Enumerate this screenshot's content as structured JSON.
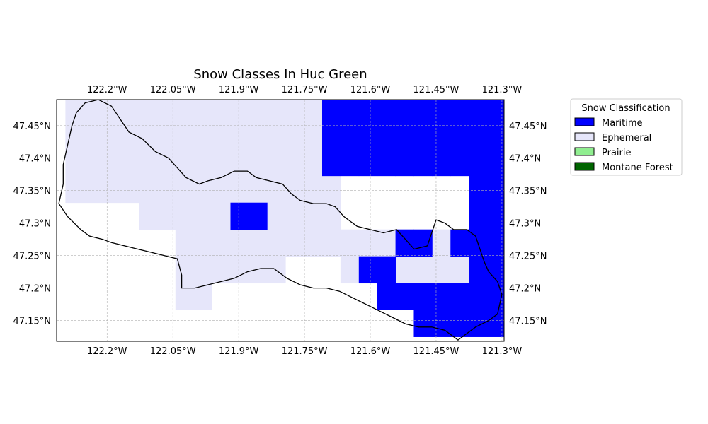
{
  "title": "Snow Classes In Huc Green",
  "colors": {
    "Maritime": "#0000ff",
    "Ephemeral": "#e6e6fa",
    "Prairie": "#90ee90",
    "Montane Forest": "#006400"
  },
  "legend": {
    "title": "Snow Classification",
    "items": [
      {
        "label": "Maritime",
        "color": "#0000ff"
      },
      {
        "label": "Ephemeral",
        "color": "#e6e6fa"
      },
      {
        "label": "Prairie",
        "color": "#90ee90"
      },
      {
        "label": "Montane Forest",
        "color": "#006400"
      }
    ]
  },
  "axes": {
    "lon_range": [
      -122.315,
      -121.295
    ],
    "lat_range": [
      47.118,
      47.49
    ],
    "lon_ticks": [
      {
        "value": -122.2,
        "label": "122.2°W"
      },
      {
        "value": -122.05,
        "label": "122.05°W"
      },
      {
        "value": -121.9,
        "label": "121.9°W"
      },
      {
        "value": -121.75,
        "label": "121.75°W"
      },
      {
        "value": -121.6,
        "label": "121.6°W"
      },
      {
        "value": -121.45,
        "label": "121.45°W"
      },
      {
        "value": -121.3,
        "label": "121.3°W"
      }
    ],
    "lat_ticks": [
      {
        "value": 47.45,
        "label": "47.45°N"
      },
      {
        "value": 47.4,
        "label": "47.4°N"
      },
      {
        "value": 47.35,
        "label": "47.35°N"
      },
      {
        "value": 47.3,
        "label": "47.3°N"
      },
      {
        "value": 47.25,
        "label": "47.25°N"
      },
      {
        "value": 47.2,
        "label": "47.2°N"
      },
      {
        "value": 47.15,
        "label": "47.15°N"
      }
    ],
    "grid": true
  },
  "chart_data": {
    "type": "heatmap",
    "grid_origin": {
      "lon": -122.295,
      "lat": 47.125
    },
    "cell_size": {
      "lon": 0.0418,
      "lat": 0.0413
    },
    "cells_Ephemeral": [
      [
        8,
        0
      ],
      [
        8,
        1
      ],
      [
        8,
        2
      ],
      [
        8,
        3
      ],
      [
        8,
        4
      ],
      [
        8,
        5
      ],
      [
        8,
        6
      ],
      [
        8,
        7
      ],
      [
        8,
        8
      ],
      [
        8,
        9
      ],
      [
        8,
        10
      ],
      [
        8,
        11
      ],
      [
        8,
        12
      ],
      [
        8,
        13
      ],
      [
        8,
        14
      ],
      [
        7,
        0
      ],
      [
        7,
        1
      ],
      [
        7,
        2
      ],
      [
        7,
        3
      ],
      [
        7,
        4
      ],
      [
        7,
        5
      ],
      [
        7,
        6
      ],
      [
        7,
        7
      ],
      [
        7,
        8
      ],
      [
        7,
        9
      ],
      [
        7,
        10
      ],
      [
        7,
        11
      ],
      [
        7,
        12
      ],
      [
        7,
        13
      ],
      [
        7,
        14
      ],
      [
        6,
        0
      ],
      [
        6,
        1
      ],
      [
        6,
        2
      ],
      [
        6,
        3
      ],
      [
        6,
        4
      ],
      [
        6,
        5
      ],
      [
        6,
        6
      ],
      [
        6,
        7
      ],
      [
        6,
        8
      ],
      [
        6,
        9
      ],
      [
        6,
        10
      ],
      [
        6,
        11
      ],
      [
        6,
        12
      ],
      [
        6,
        13
      ],
      [
        6,
        14
      ],
      [
        5,
        0
      ],
      [
        5,
        1
      ],
      [
        5,
        2
      ],
      [
        5,
        3
      ],
      [
        5,
        4
      ],
      [
        5,
        5
      ],
      [
        5,
        6
      ],
      [
        5,
        7
      ],
      [
        5,
        8
      ],
      [
        5,
        9
      ],
      [
        5,
        10
      ],
      [
        5,
        11
      ],
      [
        5,
        12
      ],
      [
        5,
        13
      ],
      [
        5,
        14
      ],
      [
        4,
        4
      ],
      [
        4,
        5
      ],
      [
        4,
        6
      ],
      [
        4,
        7
      ],
      [
        4,
        8
      ],
      [
        4,
        9
      ],
      [
        4,
        10
      ],
      [
        4,
        11
      ],
      [
        4,
        12
      ],
      [
        4,
        13
      ],
      [
        4,
        14
      ],
      [
        3,
        6
      ],
      [
        3,
        7
      ],
      [
        3,
        8
      ],
      [
        3,
        9
      ],
      [
        3,
        10
      ],
      [
        3,
        11
      ],
      [
        3,
        12
      ],
      [
        3,
        13
      ],
      [
        3,
        14
      ],
      [
        3,
        15
      ],
      [
        3,
        16
      ],
      [
        3,
        17
      ],
      [
        3,
        20
      ],
      [
        3,
        21
      ],
      [
        3,
        22
      ],
      [
        3,
        23
      ],
      [
        3,
        24
      ],
      [
        3,
        25
      ],
      [
        2,
        6
      ],
      [
        2,
        7
      ],
      [
        2,
        8
      ],
      [
        2,
        9
      ],
      [
        2,
        10
      ],
      [
        2,
        11
      ],
      [
        2,
        15
      ],
      [
        2,
        16
      ],
      [
        2,
        17
      ],
      [
        2,
        18
      ],
      [
        2,
        19
      ],
      [
        2,
        20
      ],
      [
        2,
        21
      ],
      [
        2,
        22
      ],
      [
        2,
        23
      ],
      [
        2,
        24
      ],
      [
        2,
        25
      ],
      [
        2,
        26
      ],
      [
        2,
        27
      ],
      [
        1,
        6
      ],
      [
        1,
        7
      ],
      [
        1,
        20
      ],
      [
        1,
        21
      ],
      [
        1,
        22
      ],
      [
        1,
        26
      ],
      [
        1,
        27
      ],
      [
        1,
        28
      ],
      [
        0,
        26
      ],
      [
        0,
        27
      ],
      [
        0,
        28
      ],
      [
        9,
        0
      ],
      [
        9,
        1
      ],
      [
        9,
        2
      ],
      [
        9,
        3
      ],
      [
        9,
        4
      ],
      [
        9,
        5
      ],
      [
        10,
        0
      ],
      [
        10,
        1
      ],
      [
        10,
        2
      ],
      [
        10,
        3
      ],
      [
        10,
        4
      ],
      [
        10,
        5
      ],
      [
        11,
        0
      ],
      [
        11,
        1
      ],
      [
        11,
        2
      ]
    ],
    "cells_Maritime": [
      [
        9,
        14
      ],
      [
        9,
        15
      ],
      [
        9,
        16
      ],
      [
        8,
        14
      ],
      [
        8,
        15
      ],
      [
        8,
        16
      ],
      [
        8,
        17
      ],
      [
        8,
        18
      ],
      [
        8,
        19
      ],
      [
        8,
        20
      ],
      [
        8,
        21
      ],
      [
        8,
        22
      ],
      [
        8,
        23
      ],
      [
        8,
        24
      ],
      [
        8,
        25
      ],
      [
        8,
        26
      ],
      [
        7,
        14
      ],
      [
        7,
        15
      ],
      [
        7,
        16
      ],
      [
        7,
        17
      ],
      [
        7,
        18
      ],
      [
        7,
        19
      ],
      [
        7,
        20
      ],
      [
        7,
        21
      ],
      [
        7,
        22
      ],
      [
        7,
        23
      ],
      [
        7,
        24
      ],
      [
        7,
        25
      ],
      [
        7,
        26
      ],
      [
        6,
        14
      ],
      [
        6,
        15
      ],
      [
        6,
        16
      ],
      [
        6,
        17
      ],
      [
        6,
        18
      ],
      [
        6,
        19
      ],
      [
        6,
        20
      ],
      [
        6,
        21
      ],
      [
        6,
        22
      ],
      [
        6,
        23
      ],
      [
        6,
        24
      ],
      [
        6,
        25
      ],
      [
        6,
        26
      ],
      [
        5,
        22
      ],
      [
        5,
        23
      ],
      [
        5,
        24
      ],
      [
        5,
        25
      ],
      [
        5,
        26
      ],
      [
        4,
        9
      ],
      [
        4,
        10
      ],
      [
        4,
        22
      ],
      [
        4,
        23
      ],
      [
        4,
        24
      ],
      [
        4,
        25
      ],
      [
        4,
        26
      ],
      [
        3,
        18
      ],
      [
        3,
        19
      ],
      [
        3,
        21
      ],
      [
        3,
        22
      ],
      [
        3,
        23
      ],
      [
        3,
        24
      ],
      [
        3,
        25
      ],
      [
        2,
        16
      ],
      [
        2,
        17
      ],
      [
        2,
        22
      ],
      [
        2,
        23
      ],
      [
        2,
        24
      ],
      [
        2,
        25
      ],
      [
        2,
        26
      ],
      [
        2,
        27
      ],
      [
        2,
        28
      ],
      [
        1,
        17
      ],
      [
        1,
        18
      ],
      [
        1,
        19
      ],
      [
        1,
        20
      ],
      [
        1,
        21
      ],
      [
        1,
        22
      ],
      [
        1,
        23
      ],
      [
        1,
        24
      ],
      [
        1,
        25
      ],
      [
        1,
        26
      ],
      [
        1,
        27
      ],
      [
        1,
        28
      ],
      [
        0,
        19
      ],
      [
        0,
        20
      ],
      [
        0,
        21
      ],
      [
        0,
        22
      ],
      [
        0,
        23
      ],
      [
        0,
        24
      ],
      [
        0,
        25
      ],
      [
        0,
        26
      ],
      [
        0,
        27
      ],
      [
        0,
        28
      ]
    ],
    "watershed_outline_lonlat": [
      [
        -122.31,
        47.33
      ],
      [
        -122.29,
        47.31
      ],
      [
        -122.26,
        47.29
      ],
      [
        -122.24,
        47.28
      ],
      [
        -122.21,
        47.275
      ],
      [
        -122.19,
        47.27
      ],
      [
        -122.16,
        47.265
      ],
      [
        -122.13,
        47.26
      ],
      [
        -122.1,
        47.255
      ],
      [
        -122.07,
        47.25
      ],
      [
        -122.04,
        47.245
      ],
      [
        -122.03,
        47.22
      ],
      [
        -122.03,
        47.2
      ],
      [
        -122.0,
        47.2
      ],
      [
        -121.97,
        47.205
      ],
      [
        -121.94,
        47.21
      ],
      [
        -121.91,
        47.215
      ],
      [
        -121.88,
        47.225
      ],
      [
        -121.85,
        47.23
      ],
      [
        -121.82,
        47.23
      ],
      [
        -121.79,
        47.215
      ],
      [
        -121.76,
        47.205
      ],
      [
        -121.73,
        47.2
      ],
      [
        -121.7,
        47.2
      ],
      [
        -121.67,
        47.195
      ],
      [
        -121.64,
        47.185
      ],
      [
        -121.61,
        47.175
      ],
      [
        -121.58,
        47.165
      ],
      [
        -121.55,
        47.155
      ],
      [
        -121.52,
        47.145
      ],
      [
        -121.49,
        47.14
      ],
      [
        -121.46,
        47.14
      ],
      [
        -121.43,
        47.135
      ],
      [
        -121.4,
        47.12
      ],
      [
        -121.38,
        47.13
      ],
      [
        -121.36,
        47.14
      ],
      [
        -121.33,
        47.15
      ],
      [
        -121.31,
        47.16
      ],
      [
        -121.3,
        47.19
      ],
      [
        -121.31,
        47.21
      ],
      [
        -121.33,
        47.225
      ],
      [
        -121.34,
        47.24
      ],
      [
        -121.35,
        47.26
      ],
      [
        -121.36,
        47.28
      ],
      [
        -121.38,
        47.29
      ],
      [
        -121.41,
        47.29
      ],
      [
        -121.43,
        47.3
      ],
      [
        -121.45,
        47.305
      ],
      [
        -121.46,
        47.285
      ],
      [
        -121.47,
        47.265
      ],
      [
        -121.5,
        47.26
      ],
      [
        -121.52,
        47.275
      ],
      [
        -121.54,
        47.29
      ],
      [
        -121.57,
        47.285
      ],
      [
        -121.6,
        47.29
      ],
      [
        -121.63,
        47.295
      ],
      [
        -121.66,
        47.31
      ],
      [
        -121.68,
        47.325
      ],
      [
        -121.7,
        47.33
      ],
      [
        -121.73,
        47.33
      ],
      [
        -121.76,
        47.335
      ],
      [
        -121.78,
        47.345
      ],
      [
        -121.8,
        47.36
      ],
      [
        -121.83,
        47.365
      ],
      [
        -121.86,
        47.37
      ],
      [
        -121.88,
        47.38
      ],
      [
        -121.91,
        47.38
      ],
      [
        -121.94,
        47.37
      ],
      [
        -121.97,
        47.365
      ],
      [
        -121.99,
        47.36
      ],
      [
        -122.02,
        47.37
      ],
      [
        -122.04,
        47.385
      ],
      [
        -122.06,
        47.4
      ],
      [
        -122.09,
        47.41
      ],
      [
        -122.12,
        47.43
      ],
      [
        -122.15,
        47.44
      ],
      [
        -122.17,
        47.46
      ],
      [
        -122.19,
        47.48
      ],
      [
        -122.22,
        47.49
      ],
      [
        -122.25,
        47.485
      ],
      [
        -122.27,
        47.47
      ],
      [
        -122.28,
        47.45
      ],
      [
        -122.29,
        47.42
      ],
      [
        -122.3,
        47.39
      ],
      [
        -122.3,
        47.36
      ],
      [
        -122.31,
        47.33
      ]
    ]
  }
}
